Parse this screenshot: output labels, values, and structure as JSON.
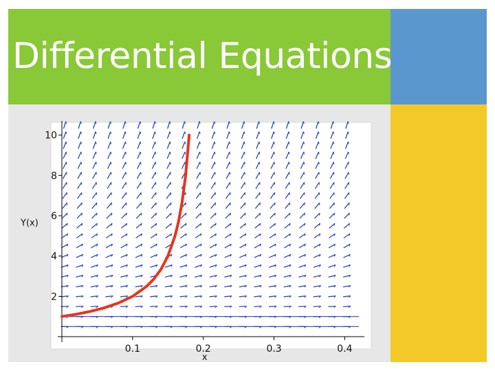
{
  "slide": {
    "title": "Differential Equations"
  },
  "colors": {
    "title_band": "#89c836",
    "accent_blue": "#5b97cf",
    "accent_yellow": "#f2c926",
    "panel": "#e7e7e7",
    "field_arrows": "#2a44c8",
    "solution_curve": "#e8341c"
  },
  "chart_data": {
    "type": "line",
    "subtype": "direction-field with solution curve",
    "xlabel": "x",
    "ylabel": "Y(x)",
    "xlim": [
      0,
      0.42
    ],
    "ylim": [
      0,
      10.5
    ],
    "x_ticks": [
      0.1,
      0.2,
      0.3,
      0.4
    ],
    "x_tick_labels": [
      "0.1",
      "0.2",
      "0.3",
      "0.4"
    ],
    "y_ticks": [
      2,
      4,
      6,
      8,
      10
    ],
    "y_tick_labels": [
      "2",
      "4",
      "6",
      "8",
      "10"
    ],
    "grid": false,
    "field": {
      "x_start": 0.0,
      "x_step": 0.021,
      "x_count": 20,
      "y_start": 0.5,
      "y_step": 0.5,
      "y_count": 21
    },
    "solution": {
      "x": [
        0.0,
        0.02,
        0.04,
        0.06,
        0.08,
        0.1,
        0.12,
        0.13,
        0.14,
        0.15,
        0.16,
        0.165,
        0.17,
        0.175,
        0.18
      ],
      "y": [
        1.0,
        1.11,
        1.25,
        1.43,
        1.67,
        2.0,
        2.5,
        2.86,
        3.33,
        4.0,
        5.0,
        5.71,
        6.67,
        8.0,
        10.0
      ]
    }
  }
}
